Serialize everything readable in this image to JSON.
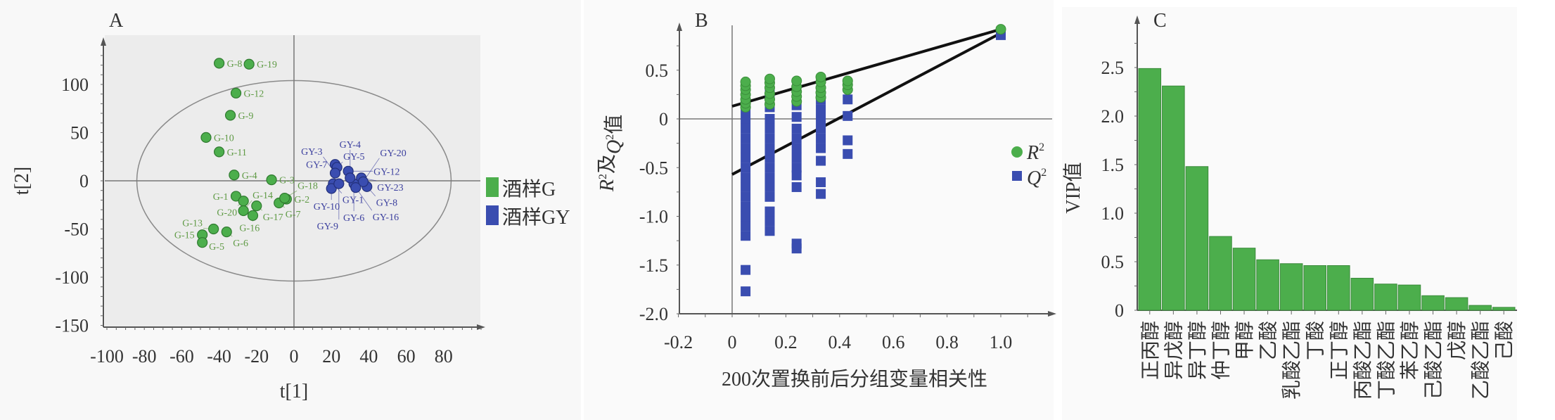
{
  "chart_data": [
    {
      "panel": "A",
      "type": "scatter",
      "xlabel": "t[1]",
      "ylabel": "t[2]",
      "xlim": [
        -100,
        100
      ],
      "ylim": [
        -150,
        140
      ],
      "xticks": [
        -100,
        -80,
        -60,
        -40,
        -20,
        0,
        20,
        40,
        60,
        80
      ],
      "yticks": [
        -150,
        -100,
        -50,
        0,
        50,
        100
      ],
      "legend": [
        "酒样G",
        "酒样GY"
      ],
      "legend_position": "right",
      "ellipse": {
        "rx": 84,
        "ry": 104
      },
      "colors": {
        "G": "#4cae4c",
        "GY": "#3a4db0",
        "G_label": "#5f9a45",
        "GY_label": "#3b3f9e",
        "plot_bg": "#ececec"
      },
      "series": [
        {
          "name": "酒样G",
          "points": [
            {
              "label": "G-8",
              "x": -40,
              "y": 122
            },
            {
              "label": "G-19",
              "x": -24,
              "y": 121
            },
            {
              "label": "G-12",
              "x": -31,
              "y": 91
            },
            {
              "label": "G-9",
              "x": -34,
              "y": 68
            },
            {
              "label": "G-10",
              "x": -47,
              "y": 45
            },
            {
              "label": "G-11",
              "x": -40,
              "y": 30
            },
            {
              "label": "G-3",
              "x": -12,
              "y": 1
            },
            {
              "label": "G-4",
              "x": -32,
              "y": 6
            },
            {
              "label": "G-17",
              "x": -20,
              "y": -26
            },
            {
              "label": "G-2",
              "x": -4,
              "y": -19
            },
            {
              "label": "G-1",
              "x": -31,
              "y": -16
            },
            {
              "label": "G-20",
              "x": -27,
              "y": -21
            },
            {
              "label": "G-14",
              "x": -27,
              "y": -31
            },
            {
              "label": "G-16",
              "x": -22,
              "y": -36
            },
            {
              "label": "G-7",
              "x": -8,
              "y": -23
            },
            {
              "label": "G-18",
              "x": -5,
              "y": -18
            },
            {
              "label": "G-6",
              "x": -36,
              "y": -53
            },
            {
              "label": "G-15",
              "x": -49,
              "y": -56
            },
            {
              "label": "G-5",
              "x": -49,
              "y": -64
            },
            {
              "label": "G-13",
              "x": -43,
              "y": -50
            }
          ]
        },
        {
          "name": "酒样GY",
          "points": [
            {
              "label": "GY-7",
              "x": 22,
              "y": 17
            },
            {
              "label": "GY-5",
              "x": 23,
              "y": 14
            },
            {
              "label": "GY-12",
              "x": 29,
              "y": 10
            },
            {
              "label": "GY-23",
              "x": 36,
              "y": 3
            },
            {
              "label": "GY-3",
              "x": 22,
              "y": 8
            },
            {
              "label": "GY-1",
              "x": 21,
              "y": -3
            },
            {
              "label": "GY-10",
              "x": 20,
              "y": -8
            },
            {
              "label": "GY-8",
              "x": 39,
              "y": -6
            },
            {
              "label": "GY-20",
              "x": 37,
              "y": -1
            },
            {
              "label": "GY-6",
              "x": 32,
              "y": -3
            },
            {
              "label": "GY-16",
              "x": 33,
              "y": -7
            },
            {
              "label": "GY-4",
              "x": 30,
              "y": 3
            },
            {
              "label": "GY-9",
              "x": 24,
              "y": -3
            }
          ]
        }
      ]
    },
    {
      "panel": "B",
      "type": "scatter",
      "xlabel": "200次置换前后分组变量相关性",
      "ylabel_parts": [
        "R",
        "2",
        "及",
        "Q",
        "2",
        "值"
      ],
      "xlim": [
        -0.2,
        1.15
      ],
      "ylim": [
        -2.0,
        0.95
      ],
      "xticks": [
        "-0.2",
        "0",
        "0.2",
        "0.4",
        "0.6",
        "0.8",
        "1.0"
      ],
      "yticks": [
        "-2.0",
        "-1.5",
        "-1.0",
        "-0.5",
        "0",
        "0.5"
      ],
      "legend": [
        {
          "name": "R",
          "sup": "2"
        },
        {
          "name": "Q",
          "sup": "2"
        }
      ],
      "legend_position": "right",
      "colors": {
        "R2": "#4cae4c",
        "Q2": "#3a4db0"
      },
      "regression_lines": [
        {
          "name": "R2",
          "intercept": 0.13,
          "end": [
            1.0,
            0.92
          ]
        },
        {
          "name": "Q2",
          "intercept": -0.57,
          "end": [
            1.0,
            0.88
          ]
        }
      ],
      "series": [
        {
          "name": "R2",
          "points": [
            [
              0.05,
              0.12
            ],
            [
              0.05,
              0.16
            ],
            [
              0.05,
              0.2
            ],
            [
              0.05,
              0.25
            ],
            [
              0.05,
              0.3
            ],
            [
              0.05,
              0.34
            ],
            [
              0.05,
              0.38
            ],
            [
              0.14,
              0.15
            ],
            [
              0.14,
              0.2
            ],
            [
              0.14,
              0.26
            ],
            [
              0.14,
              0.32
            ],
            [
              0.14,
              0.37
            ],
            [
              0.14,
              0.41
            ],
            [
              0.24,
              0.18
            ],
            [
              0.24,
              0.23
            ],
            [
              0.24,
              0.28
            ],
            [
              0.24,
              0.33
            ],
            [
              0.24,
              0.39
            ],
            [
              0.33,
              0.22
            ],
            [
              0.33,
              0.27
            ],
            [
              0.33,
              0.32
            ],
            [
              0.33,
              0.38
            ],
            [
              0.33,
              0.43
            ],
            [
              0.43,
              0.3
            ],
            [
              0.43,
              0.35
            ],
            [
              0.43,
              0.39
            ],
            [
              1.0,
              0.92
            ]
          ]
        },
        {
          "name": "Q2",
          "points": [
            [
              0.05,
              0.1
            ],
            [
              0.05,
              0.0
            ],
            [
              0.05,
              -0.1
            ],
            [
              0.05,
              -0.2
            ],
            [
              0.05,
              -0.3
            ],
            [
              0.05,
              -0.4
            ],
            [
              0.05,
              -0.5
            ],
            [
              0.05,
              -0.6
            ],
            [
              0.05,
              -0.7
            ],
            [
              0.05,
              -0.8
            ],
            [
              0.05,
              -0.9
            ],
            [
              0.05,
              -1.0
            ],
            [
              0.05,
              -1.1
            ],
            [
              0.05,
              -1.2
            ],
            [
              0.05,
              -1.55
            ],
            [
              0.05,
              -1.77
            ],
            [
              0.14,
              0.25
            ],
            [
              0.14,
              0.12
            ],
            [
              0.14,
              0.0
            ],
            [
              0.14,
              -0.1
            ],
            [
              0.14,
              -0.2
            ],
            [
              0.14,
              -0.3
            ],
            [
              0.14,
              -0.4
            ],
            [
              0.14,
              -0.5
            ],
            [
              0.14,
              -0.6
            ],
            [
              0.14,
              -0.7
            ],
            [
              0.14,
              -0.8
            ],
            [
              0.14,
              -0.95
            ],
            [
              0.14,
              -1.05
            ],
            [
              0.14,
              -1.15
            ],
            [
              0.24,
              0.14
            ],
            [
              0.24,
              0.02
            ],
            [
              0.24,
              -0.1
            ],
            [
              0.24,
              -0.2
            ],
            [
              0.24,
              -0.3
            ],
            [
              0.24,
              -0.4
            ],
            [
              0.24,
              -0.5
            ],
            [
              0.24,
              -0.58
            ],
            [
              0.24,
              -0.7
            ],
            [
              0.24,
              -1.28
            ],
            [
              0.24,
              -1.33
            ],
            [
              0.33,
              0.2
            ],
            [
              0.33,
              0.1
            ],
            [
              0.33,
              0.0
            ],
            [
              0.33,
              -0.1
            ],
            [
              0.33,
              -0.2
            ],
            [
              0.33,
              -0.3
            ],
            [
              0.33,
              -0.43
            ],
            [
              0.33,
              -0.65
            ],
            [
              0.33,
              -0.77
            ],
            [
              0.43,
              0.2
            ],
            [
              0.43,
              0.03
            ],
            [
              0.43,
              -0.22
            ],
            [
              0.43,
              -0.36
            ],
            [
              1.0,
              0.86
            ]
          ]
        }
      ]
    },
    {
      "panel": "C",
      "type": "bar",
      "ylabel": "VIP值",
      "ylim": [
        0,
        2.8
      ],
      "yticks": [
        "0",
        "0.5",
        "1.0",
        "1.5",
        "2.0",
        "2.5"
      ],
      "color": "#4cae4c",
      "categories": [
        "正丙醇",
        "异戊醇",
        "异丁醇",
        "仲丁醇",
        "甲醇",
        "乙酸",
        "乳酸乙酯",
        "丁酸",
        "正丁醇",
        "丙酸乙酯",
        "丁酸乙酯",
        "苯乙醇",
        "己酸乙酯",
        "戊醇",
        "乙酸乙酯",
        "己酸"
      ],
      "values": [
        2.49,
        2.31,
        1.48,
        0.76,
        0.64,
        0.52,
        0.48,
        0.46,
        0.46,
        0.33,
        0.27,
        0.26,
        0.15,
        0.13,
        0.05,
        0.03
      ]
    }
  ]
}
